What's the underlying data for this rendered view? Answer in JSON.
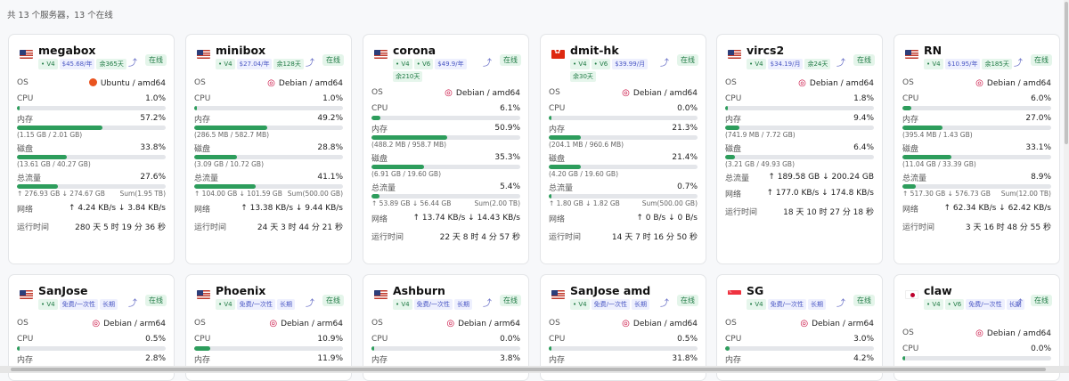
{
  "summary": "共 13 个服务器，13 个在线",
  "labels": {
    "os": "OS",
    "cpu": "CPU",
    "mem": "内存",
    "disk": "磁盘",
    "traffic": "总流量",
    "net": "网络",
    "uptime": "运行时间",
    "status": "在线"
  },
  "colors": {
    "accent": "#2d9d5c",
    "online_bg": "#e4f5ea",
    "price_bg": "#eef0fe"
  },
  "servers": [
    {
      "name": "megabox",
      "flag": "us",
      "tags": [
        {
          "t": "V4",
          "k": "ip"
        },
        {
          "t": "$45.68/年",
          "k": "price"
        },
        {
          "t": "余365天",
          "k": "rem"
        }
      ],
      "os_icon": "ubuntu-icon",
      "os": "Ubuntu / amd64",
      "cpu": "1.0%",
      "cpu_f": 0.01,
      "mem": "57.2%",
      "mem_f": 0.572,
      "mem_sub": "(1.15 GB / 2.01 GB)",
      "disk": "33.8%",
      "disk_f": 0.338,
      "disk_sub": "(13.61 GB / 40.27 GB)",
      "traffic": "27.6%",
      "traffic_f": 0.276,
      "traffic_sub": "↑ 276.93 GB ↓ 274.67 GB",
      "traffic_sum": "Sum(1.95 TB)",
      "net": "↑ 4.24 KB/s ↓ 3.84 KB/s",
      "uptime": "280 天 5 时 19 分 36 秒"
    },
    {
      "name": "minibox",
      "flag": "us",
      "tags": [
        {
          "t": "V4",
          "k": "ip"
        },
        {
          "t": "$27.04/年",
          "k": "price"
        },
        {
          "t": "余128天",
          "k": "rem"
        }
      ],
      "os_icon": "debian-icon",
      "os": "Debian / amd64",
      "cpu": "1.0%",
      "cpu_f": 0.01,
      "mem": "49.2%",
      "mem_f": 0.492,
      "mem_sub": "(286.5 MB / 582.7 MB)",
      "disk": "28.8%",
      "disk_f": 0.288,
      "disk_sub": "(3.09 GB / 10.72 GB)",
      "traffic": "41.1%",
      "traffic_f": 0.411,
      "traffic_sub": "↑ 104.00 GB ↓ 101.59 GB",
      "traffic_sum": "Sum(500.00 GB)",
      "net": "↑ 13.38 KB/s ↓ 9.44 KB/s",
      "uptime": "24 天 3 时 44 分 21 秒"
    },
    {
      "name": "corona",
      "flag": "us",
      "tags": [
        {
          "t": "V4",
          "k": "ip"
        },
        {
          "t": "V6",
          "k": "ip"
        },
        {
          "t": "$49.9/年",
          "k": "price"
        },
        {
          "t": "余210天",
          "k": "rem"
        }
      ],
      "os_icon": "debian-icon",
      "os": "Debian / amd64",
      "cpu": "6.1%",
      "cpu_f": 0.061,
      "mem": "50.9%",
      "mem_f": 0.509,
      "mem_sub": "(488.2 MB / 958.7 MB)",
      "disk": "35.3%",
      "disk_f": 0.353,
      "disk_sub": "(6.91 GB / 19.60 GB)",
      "traffic": "5.4%",
      "traffic_f": 0.054,
      "traffic_sub": "↑ 53.89 GB ↓ 56.44 GB",
      "traffic_sum": "Sum(2.00 TB)",
      "net": "↑ 13.74 KB/s ↓ 14.43 KB/s",
      "uptime": "22 天 8 时 4 分 57 秒"
    },
    {
      "name": "dmit-hk",
      "flag": "hk",
      "tags": [
        {
          "t": "V4",
          "k": "ip"
        },
        {
          "t": "V6",
          "k": "ip"
        },
        {
          "t": "$39.99/月",
          "k": "price"
        },
        {
          "t": "余30天",
          "k": "rem"
        }
      ],
      "os_icon": "debian-icon",
      "os": "Debian / amd64",
      "cpu": "0.0%",
      "cpu_f": 0.0,
      "mem": "21.3%",
      "mem_f": 0.213,
      "mem_sub": "(204.1 MB / 960.6 MB)",
      "disk": "21.4%",
      "disk_f": 0.214,
      "disk_sub": "(4.20 GB / 19.60 GB)",
      "traffic": "0.7%",
      "traffic_f": 0.007,
      "traffic_sub": "↑ 1.80 GB ↓ 1.82 GB",
      "traffic_sum": "Sum(500.00 GB)",
      "net": "↑ 0 B/s ↓ 0 B/s",
      "uptime": "14 天 7 时 16 分 50 秒"
    },
    {
      "name": "vircs2",
      "flag": "us",
      "tags": [
        {
          "t": "V4",
          "k": "ip"
        },
        {
          "t": "$34.19/月",
          "k": "price"
        },
        {
          "t": "余24天",
          "k": "rem"
        }
      ],
      "os_icon": "debian-icon",
      "os": "Debian / amd64",
      "cpu": "1.8%",
      "cpu_f": 0.018,
      "mem": "9.4%",
      "mem_f": 0.094,
      "mem_sub": "(741.9 MB / 7.72 GB)",
      "disk": "6.4%",
      "disk_f": 0.064,
      "disk_sub": "(3.21 GB / 49.93 GB)",
      "traffic": "↑ 189.58 GB ↓ 200.24 GB",
      "traffic_f": null,
      "traffic_sub": "",
      "traffic_sum": "",
      "net": "↑ 177.0 KB/s ↓ 174.8 KB/s",
      "uptime": "18 天 10 时 27 分 18 秒"
    },
    {
      "name": "RN",
      "flag": "us",
      "tags": [
        {
          "t": "V4",
          "k": "ip"
        },
        {
          "t": "$10.95/年",
          "k": "price"
        },
        {
          "t": "余185天",
          "k": "rem"
        }
      ],
      "os_icon": "debian-icon",
      "os": "Debian / amd64",
      "cpu": "6.0%",
      "cpu_f": 0.06,
      "mem": "27.0%",
      "mem_f": 0.27,
      "mem_sub": "(395.4 MB / 1.43 GB)",
      "disk": "33.1%",
      "disk_f": 0.331,
      "disk_sub": "(11.04 GB / 33.39 GB)",
      "traffic": "8.9%",
      "traffic_f": 0.089,
      "traffic_sub": "↑ 517.30 GB ↓ 576.73 GB",
      "traffic_sum": "Sum(12.00 TB)",
      "net": "↑ 62.34 KB/s ↓ 62.42 KB/s",
      "uptime": "3 天 16 时 48 分 55 秒"
    },
    {
      "name": "SanJose",
      "flag": "us",
      "tags": [
        {
          "t": "V4",
          "k": "ip"
        },
        {
          "t": "免费/一次性",
          "k": "price"
        },
        {
          "t": "长期",
          "k": "price"
        }
      ],
      "os_icon": "debian-icon",
      "os": "Debian / arm64",
      "cpu": "0.5%",
      "cpu_f": 0.005,
      "mem": "2.8%",
      "mem_f": 0.028
    },
    {
      "name": "Phoenix",
      "flag": "us",
      "tags": [
        {
          "t": "V4",
          "k": "ip"
        },
        {
          "t": "免费/一次性",
          "k": "price"
        },
        {
          "t": "长期",
          "k": "price"
        }
      ],
      "os_icon": "debian-icon",
      "os": "Debian / arm64",
      "cpu": "10.9%",
      "cpu_f": 0.109,
      "mem": "11.9%",
      "mem_f": 0.119
    },
    {
      "name": "Ashburn",
      "flag": "us",
      "tags": [
        {
          "t": "V4",
          "k": "ip"
        },
        {
          "t": "免费/一次性",
          "k": "price"
        },
        {
          "t": "长期",
          "k": "price"
        }
      ],
      "os_icon": "debian-icon",
      "os": "Debian / arm64",
      "cpu": "0.0%",
      "cpu_f": 0.0,
      "mem": "3.8%",
      "mem_f": 0.038
    },
    {
      "name": "SanJose amd",
      "flag": "us",
      "tags": [
        {
          "t": "V4",
          "k": "ip"
        },
        {
          "t": "免费/一次性",
          "k": "price"
        },
        {
          "t": "长期",
          "k": "price"
        }
      ],
      "os_icon": "debian-icon",
      "os": "Debian / amd64",
      "cpu": "0.5%",
      "cpu_f": 0.005,
      "mem": "31.8%",
      "mem_f": 0.318
    },
    {
      "name": "SG",
      "flag": "sg",
      "tags": [
        {
          "t": "V4",
          "k": "ip"
        },
        {
          "t": "免费/一次性",
          "k": "price"
        },
        {
          "t": "长期",
          "k": "price"
        }
      ],
      "os_icon": "debian-icon",
      "os": "Debian / arm64",
      "cpu": "3.0%",
      "cpu_f": 0.03,
      "mem": "4.2%",
      "mem_f": 0.042
    },
    {
      "name": "claw",
      "flag": "jp",
      "tags": [
        {
          "t": "V4",
          "k": "ip"
        },
        {
          "t": "V6",
          "k": "ip"
        },
        {
          "t": "免费/一次性",
          "k": "price"
        },
        {
          "t": "长期",
          "k": "price"
        }
      ],
      "os_icon": "debian-icon",
      "os": "Debian / amd64",
      "cpu": "0.0%",
      "cpu_f": 0.0
    }
  ]
}
